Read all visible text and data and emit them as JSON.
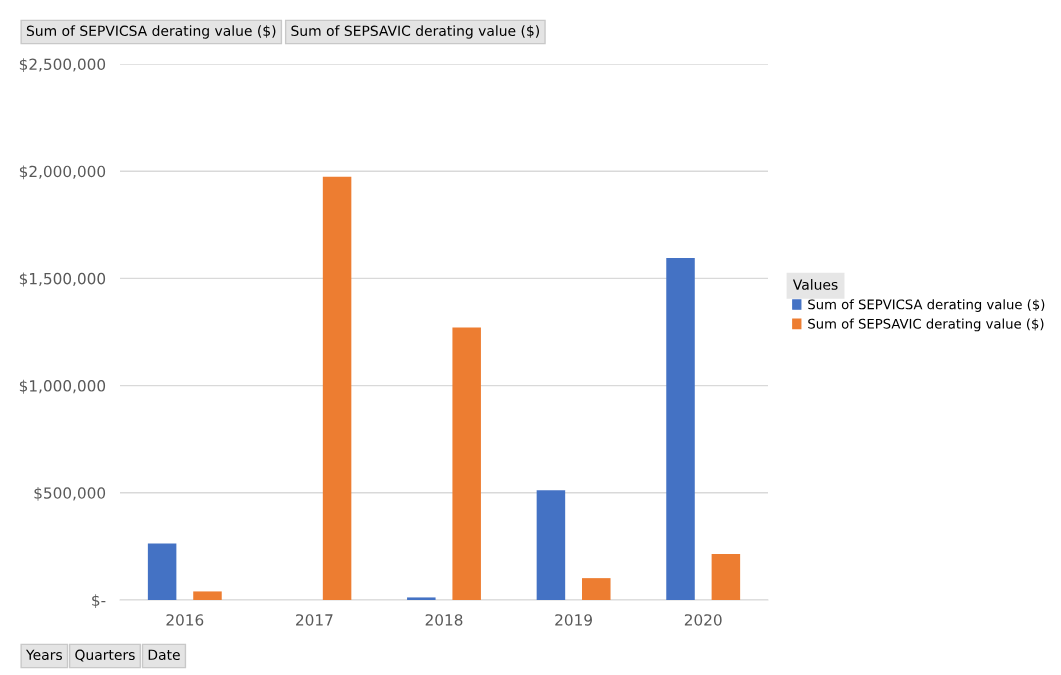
{
  "chart_data": {
    "type": "bar",
    "categories": [
      "2016",
      "2017",
      "2018",
      "2019",
      "2020"
    ],
    "series": [
      {
        "name": "Sum of SEPVICSA derating value ($)",
        "color": "#4472c4",
        "values": [
          263000,
          0,
          12000,
          512000,
          1595000
        ]
      },
      {
        "name": "Sum of SEPSAVIC derating value ($)",
        "color": "#ed7d31",
        "values": [
          40000,
          1974000,
          1271000,
          102000,
          214000
        ]
      }
    ],
    "ylim": [
      0,
      2500000
    ],
    "yticks": [
      {
        "value": 0,
        "label": "$-"
      },
      {
        "value": 500000,
        "label": "$500,000"
      },
      {
        "value": 1000000,
        "label": "$1,000,000"
      },
      {
        "value": 1500000,
        "label": "$1,500,000"
      },
      {
        "value": 2000000,
        "label": "$2,000,000"
      },
      {
        "value": 2500000,
        "label": "$2,500,000"
      }
    ],
    "grid": "y",
    "legend": "right",
    "legend_title": "Values",
    "annotations": [
      "Sum of SEPVICSA derating value ($)",
      "Sum of SEPSAVIC derating value ($)",
      "Years",
      "Quarters",
      "Date"
    ]
  }
}
